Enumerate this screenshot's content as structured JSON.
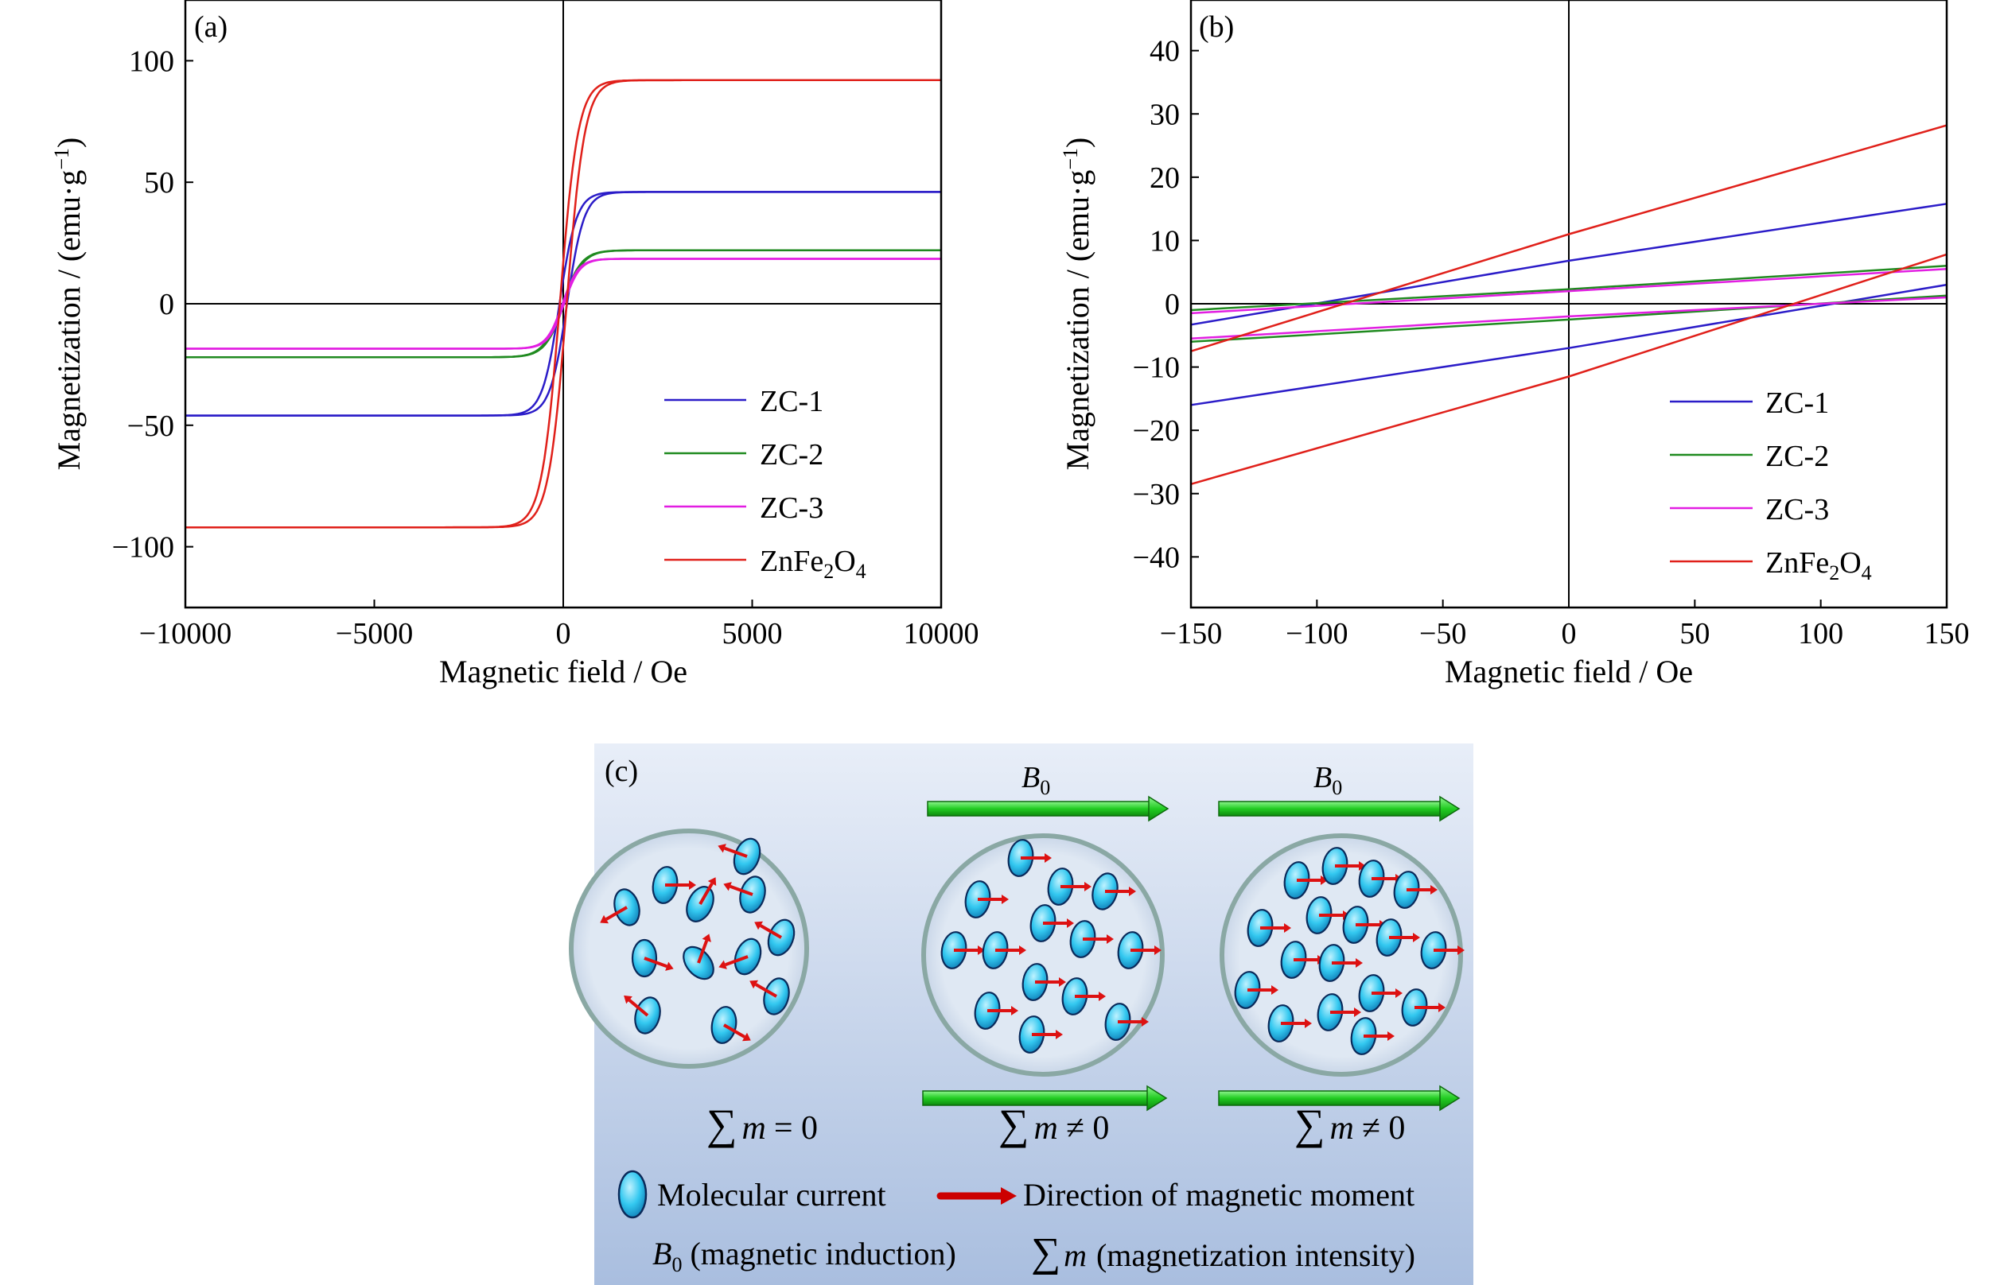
{
  "chart_data": [
    {
      "type": "line",
      "panel_label": "(a)",
      "xlabel": "Magnetic field / Oe",
      "ylabel": "Magnetization / (emu·g⁻¹)",
      "xlim": [
        -10000,
        10000
      ],
      "ylim": [
        -125,
        125
      ],
      "xticks": [
        -10000,
        -5000,
        0,
        5000,
        10000
      ],
      "xtick_labels": [
        "−10000",
        "−5000",
        "0",
        "5000",
        "10000"
      ],
      "yticks": [
        -100,
        -50,
        0,
        50,
        100
      ],
      "ytick_labels": [
        "−100",
        "−50",
        "0",
        "50",
        "100"
      ],
      "legend_position": "bottom-right",
      "series": [
        {
          "name": "ZC-1",
          "color": "#2b1cc8",
          "ms": 46,
          "hc": 100,
          "h0": 450
        },
        {
          "name": "ZC-2",
          "color": "#1f8a1f",
          "ms": 22,
          "hc": 20,
          "h0": 500
        },
        {
          "name": "ZC-3",
          "color": "#e21ee2",
          "ms": 18.5,
          "hc": 20,
          "h0": 420
        },
        {
          "name": "ZnFe2O4",
          "color": "#e0201a",
          "ms": 92,
          "hc": 90,
          "h0": 480
        }
      ]
    },
    {
      "type": "line",
      "panel_label": "(b)",
      "xlabel": "Magnetic field / Oe",
      "ylabel": "Magnetization / (emu·g⁻¹)",
      "xlim": [
        -150,
        150
      ],
      "ylim": [
        -48,
        48
      ],
      "xticks": [
        -150,
        -100,
        -50,
        0,
        50,
        100,
        150
      ],
      "xtick_labels": [
        "−150",
        "−100",
        "−50",
        "0",
        "50",
        "100",
        "150"
      ],
      "yticks": [
        -40,
        -30,
        -20,
        -10,
        0,
        10,
        20,
        30,
        40
      ],
      "ytick_labels": [
        "−40",
        "−30",
        "−20",
        "−10",
        "0",
        "10",
        "20",
        "30",
        "40"
      ],
      "legend_position": "bottom-right",
      "series": [
        {
          "name": "ZC-1",
          "color": "#2b1cc8",
          "upper": [
            [
              -150,
              -3.3
            ],
            [
              0,
              6.8
            ],
            [
              150,
              15.8
            ]
          ],
          "lower": [
            [
              -150,
              -16
            ],
            [
              0,
              -7
            ],
            [
              150,
              3
            ]
          ]
        },
        {
          "name": "ZC-2",
          "color": "#1f8a1f",
          "upper": [
            [
              -150,
              -1
            ],
            [
              0,
              2.3
            ],
            [
              150,
              6
            ]
          ],
          "lower": [
            [
              -150,
              -6
            ],
            [
              0,
              -2.5
            ],
            [
              150,
              1.3
            ]
          ]
        },
        {
          "name": "ZC-3",
          "color": "#e21ee2",
          "upper": [
            [
              -150,
              -1.5
            ],
            [
              0,
              2
            ],
            [
              150,
              5.5
            ]
          ],
          "lower": [
            [
              -150,
              -5.5
            ],
            [
              0,
              -2
            ],
            [
              150,
              1
            ]
          ]
        },
        {
          "name": "ZnFe2O4",
          "color": "#e0201a",
          "upper": [
            [
              -150,
              -7.5
            ],
            [
              0,
              11
            ],
            [
              150,
              28.2
            ]
          ],
          "lower": [
            [
              -150,
              -28.5
            ],
            [
              0,
              -11.5
            ],
            [
              150,
              7.8
            ]
          ]
        }
      ]
    }
  ],
  "panel_a": {
    "label": "(a)",
    "xlabel": "Magnetic field / Oe",
    "ylabel_main": "Magnetization / (emu·g",
    "ylabel_sup": "−1",
    "ylabel_close": ")",
    "legend": [
      "ZC-1",
      "ZC-2",
      "ZC-3"
    ],
    "legend_last": {
      "base": "ZnFe",
      "sub1": "2",
      "mid": "O",
      "sub2": "4"
    }
  },
  "panel_b": {
    "label": "(b)",
    "xlabel": "Magnetic field / Oe",
    "ylabel_main": "Magnetization / (emu·g",
    "ylabel_sup": "−1",
    "ylabel_close": ")",
    "legend": [
      "ZC-1",
      "ZC-2",
      "ZC-3"
    ],
    "legend_last": {
      "base": "ZnFe",
      "sub1": "2",
      "mid": "O",
      "sub2": "4"
    }
  },
  "panel_c": {
    "label": "(c)",
    "field_label": "B",
    "field_sub": "0",
    "sum_symbol": "∑",
    "sum_var": "m",
    "sum_zero": "= 0",
    "sum_nonzero": "≠ 0",
    "legend_current": "Molecular current",
    "legend_direction": "Direction of magnetic moment",
    "legend_induction": "(magnetic induction)",
    "legend_intensity": "(magnetization intensity)",
    "colors": {
      "background_top": "#e8eef8",
      "background_bottom": "#a9bedf",
      "arrow": "#22cc22",
      "particle": "#33c8f0",
      "moment": "#dd1111"
    }
  }
}
